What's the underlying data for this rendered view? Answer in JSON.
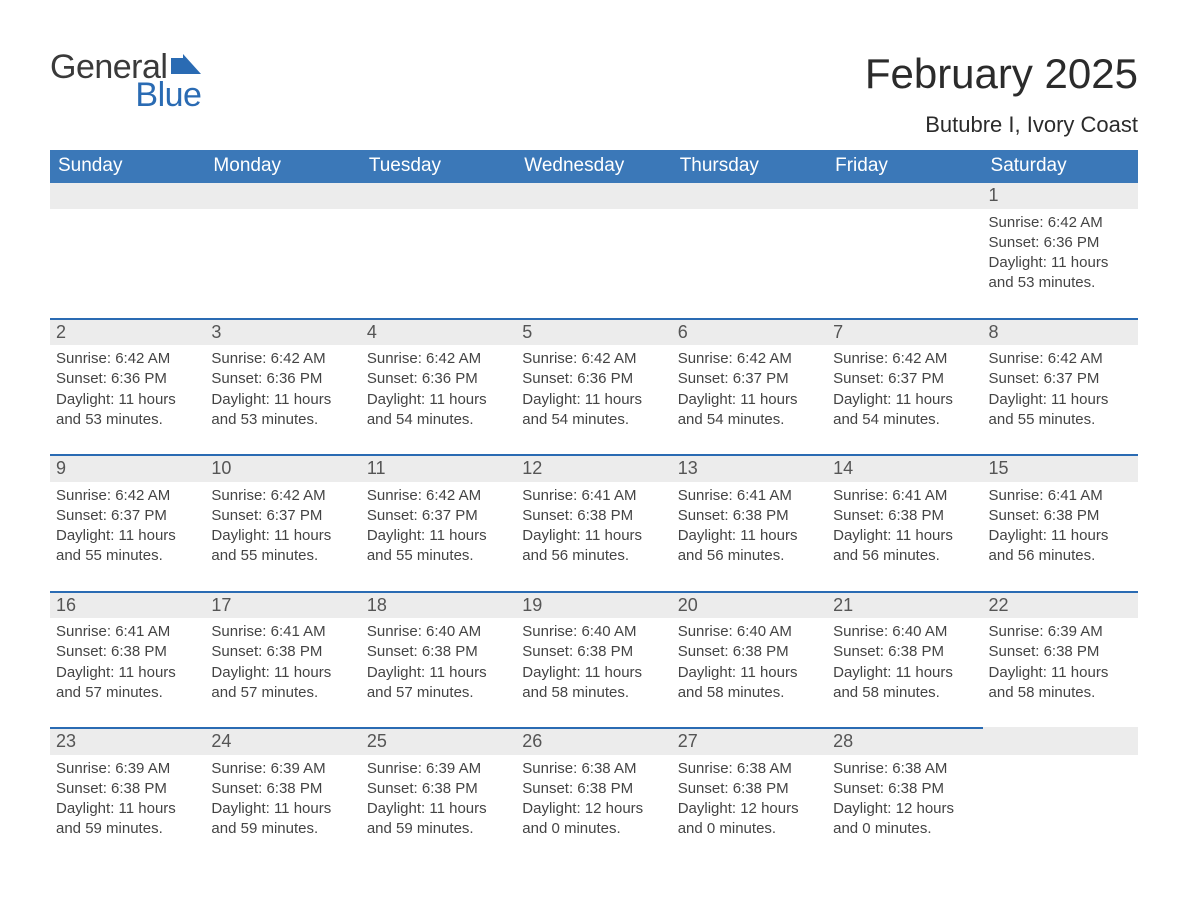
{
  "brand": {
    "line1": "General",
    "line2": "Blue",
    "logo_dark_color": "#3a3a3a",
    "logo_blue_color": "#2a6bb3"
  },
  "title": {
    "month_year": "February 2025",
    "location": "Butubre I, Ivory Coast"
  },
  "colors": {
    "header_bg": "#3b78b8",
    "header_text": "#ffffff",
    "row_divider": "#2a6bb3",
    "daynum_bg": "#ececec",
    "page_bg": "#ffffff",
    "text": "#2b2b2b"
  },
  "typography": {
    "title_fontsize": 42,
    "location_fontsize": 22,
    "header_fontsize": 19,
    "daynum_fontsize": 18,
    "body_fontsize": 15,
    "font_family": "Arial"
  },
  "weekday_headers": [
    "Sunday",
    "Monday",
    "Tuesday",
    "Wednesday",
    "Thursday",
    "Friday",
    "Saturday"
  ],
  "weeks": [
    [
      null,
      null,
      null,
      null,
      null,
      null,
      {
        "day": "1",
        "sunrise": "Sunrise: 6:42 AM",
        "sunset": "Sunset: 6:36 PM",
        "daylight1": "Daylight: 11 hours",
        "daylight2": "and 53 minutes."
      }
    ],
    [
      {
        "day": "2",
        "sunrise": "Sunrise: 6:42 AM",
        "sunset": "Sunset: 6:36 PM",
        "daylight1": "Daylight: 11 hours",
        "daylight2": "and 53 minutes."
      },
      {
        "day": "3",
        "sunrise": "Sunrise: 6:42 AM",
        "sunset": "Sunset: 6:36 PM",
        "daylight1": "Daylight: 11 hours",
        "daylight2": "and 53 minutes."
      },
      {
        "day": "4",
        "sunrise": "Sunrise: 6:42 AM",
        "sunset": "Sunset: 6:36 PM",
        "daylight1": "Daylight: 11 hours",
        "daylight2": "and 54 minutes."
      },
      {
        "day": "5",
        "sunrise": "Sunrise: 6:42 AM",
        "sunset": "Sunset: 6:36 PM",
        "daylight1": "Daylight: 11 hours",
        "daylight2": "and 54 minutes."
      },
      {
        "day": "6",
        "sunrise": "Sunrise: 6:42 AM",
        "sunset": "Sunset: 6:37 PM",
        "daylight1": "Daylight: 11 hours",
        "daylight2": "and 54 minutes."
      },
      {
        "day": "7",
        "sunrise": "Sunrise: 6:42 AM",
        "sunset": "Sunset: 6:37 PM",
        "daylight1": "Daylight: 11 hours",
        "daylight2": "and 54 minutes."
      },
      {
        "day": "8",
        "sunrise": "Sunrise: 6:42 AM",
        "sunset": "Sunset: 6:37 PM",
        "daylight1": "Daylight: 11 hours",
        "daylight2": "and 55 minutes."
      }
    ],
    [
      {
        "day": "9",
        "sunrise": "Sunrise: 6:42 AM",
        "sunset": "Sunset: 6:37 PM",
        "daylight1": "Daylight: 11 hours",
        "daylight2": "and 55 minutes."
      },
      {
        "day": "10",
        "sunrise": "Sunrise: 6:42 AM",
        "sunset": "Sunset: 6:37 PM",
        "daylight1": "Daylight: 11 hours",
        "daylight2": "and 55 minutes."
      },
      {
        "day": "11",
        "sunrise": "Sunrise: 6:42 AM",
        "sunset": "Sunset: 6:37 PM",
        "daylight1": "Daylight: 11 hours",
        "daylight2": "and 55 minutes."
      },
      {
        "day": "12",
        "sunrise": "Sunrise: 6:41 AM",
        "sunset": "Sunset: 6:38 PM",
        "daylight1": "Daylight: 11 hours",
        "daylight2": "and 56 minutes."
      },
      {
        "day": "13",
        "sunrise": "Sunrise: 6:41 AM",
        "sunset": "Sunset: 6:38 PM",
        "daylight1": "Daylight: 11 hours",
        "daylight2": "and 56 minutes."
      },
      {
        "day": "14",
        "sunrise": "Sunrise: 6:41 AM",
        "sunset": "Sunset: 6:38 PM",
        "daylight1": "Daylight: 11 hours",
        "daylight2": "and 56 minutes."
      },
      {
        "day": "15",
        "sunrise": "Sunrise: 6:41 AM",
        "sunset": "Sunset: 6:38 PM",
        "daylight1": "Daylight: 11 hours",
        "daylight2": "and 56 minutes."
      }
    ],
    [
      {
        "day": "16",
        "sunrise": "Sunrise: 6:41 AM",
        "sunset": "Sunset: 6:38 PM",
        "daylight1": "Daylight: 11 hours",
        "daylight2": "and 57 minutes."
      },
      {
        "day": "17",
        "sunrise": "Sunrise: 6:41 AM",
        "sunset": "Sunset: 6:38 PM",
        "daylight1": "Daylight: 11 hours",
        "daylight2": "and 57 minutes."
      },
      {
        "day": "18",
        "sunrise": "Sunrise: 6:40 AM",
        "sunset": "Sunset: 6:38 PM",
        "daylight1": "Daylight: 11 hours",
        "daylight2": "and 57 minutes."
      },
      {
        "day": "19",
        "sunrise": "Sunrise: 6:40 AM",
        "sunset": "Sunset: 6:38 PM",
        "daylight1": "Daylight: 11 hours",
        "daylight2": "and 58 minutes."
      },
      {
        "day": "20",
        "sunrise": "Sunrise: 6:40 AM",
        "sunset": "Sunset: 6:38 PM",
        "daylight1": "Daylight: 11 hours",
        "daylight2": "and 58 minutes."
      },
      {
        "day": "21",
        "sunrise": "Sunrise: 6:40 AM",
        "sunset": "Sunset: 6:38 PM",
        "daylight1": "Daylight: 11 hours",
        "daylight2": "and 58 minutes."
      },
      {
        "day": "22",
        "sunrise": "Sunrise: 6:39 AM",
        "sunset": "Sunset: 6:38 PM",
        "daylight1": "Daylight: 11 hours",
        "daylight2": "and 58 minutes."
      }
    ],
    [
      {
        "day": "23",
        "sunrise": "Sunrise: 6:39 AM",
        "sunset": "Sunset: 6:38 PM",
        "daylight1": "Daylight: 11 hours",
        "daylight2": "and 59 minutes."
      },
      {
        "day": "24",
        "sunrise": "Sunrise: 6:39 AM",
        "sunset": "Sunset: 6:38 PM",
        "daylight1": "Daylight: 11 hours",
        "daylight2": "and 59 minutes."
      },
      {
        "day": "25",
        "sunrise": "Sunrise: 6:39 AM",
        "sunset": "Sunset: 6:38 PM",
        "daylight1": "Daylight: 11 hours",
        "daylight2": "and 59 minutes."
      },
      {
        "day": "26",
        "sunrise": "Sunrise: 6:38 AM",
        "sunset": "Sunset: 6:38 PM",
        "daylight1": "Daylight: 12 hours",
        "daylight2": "and 0 minutes."
      },
      {
        "day": "27",
        "sunrise": "Sunrise: 6:38 AM",
        "sunset": "Sunset: 6:38 PM",
        "daylight1": "Daylight: 12 hours",
        "daylight2": "and 0 minutes."
      },
      {
        "day": "28",
        "sunrise": "Sunrise: 6:38 AM",
        "sunset": "Sunset: 6:38 PM",
        "daylight1": "Daylight: 12 hours",
        "daylight2": "and 0 minutes."
      },
      null
    ]
  ]
}
